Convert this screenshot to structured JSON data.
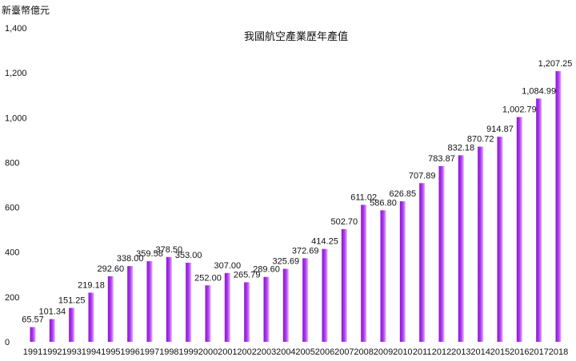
{
  "chart_data": {
    "type": "bar",
    "title": "我國航空產業歷年產值",
    "ylabel": "新臺幣億元",
    "xlabel": "",
    "ylim": [
      0,
      1400
    ],
    "yticks": [
      "0",
      "200",
      "400",
      "600",
      "800",
      "1,000",
      "1,200",
      "1,400"
    ],
    "ytick_values": [
      0,
      200,
      400,
      600,
      800,
      1000,
      1200,
      1400
    ],
    "grid": false,
    "legend": "none",
    "categories": [
      "1991",
      "1992",
      "1993",
      "1994",
      "1995",
      "1996",
      "1997",
      "1998",
      "1999",
      "2000",
      "2001",
      "2002",
      "2003",
      "2004",
      "2005",
      "2006",
      "2007",
      "2008",
      "2009",
      "2010",
      "2011",
      "2012",
      "2013",
      "2014",
      "2015",
      "2016",
      "2017",
      "2018"
    ],
    "values": [
      65.57,
      101.34,
      151.25,
      219.18,
      292.6,
      338.0,
      359.58,
      378.5,
      353.0,
      252.0,
      307.0,
      265.79,
      289.6,
      325.69,
      372.69,
      414.25,
      502.7,
      611.02,
      586.8,
      626.85,
      707.89,
      783.87,
      832.18,
      870.72,
      914.87,
      1002.79,
      1084.99,
      1207.25
    ],
    "value_labels": [
      "65.57",
      "101.34",
      "151.25",
      "219.18",
      "292.60",
      "338.00",
      "359.58",
      "378.50",
      "353.00",
      "252.00",
      "307.00",
      "265.79",
      "289.60",
      "325.69",
      "372.69",
      "414.25",
      "502.70",
      "611.02",
      "586.80",
      "626.85",
      "707.89",
      "783.87",
      "832.18",
      "870.72",
      "914.87",
      "1,002.79",
      "1,084.99",
      "1,207.25"
    ],
    "colors": {
      "bar_dark": "#8a10d8",
      "bar_light": "#e8b4ff"
    }
  }
}
